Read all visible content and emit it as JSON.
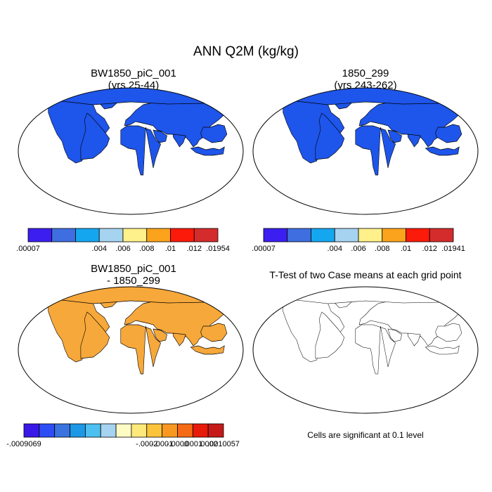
{
  "title": "ANN Q2M (kg/kg)",
  "panels": [
    {
      "id": "tl",
      "title_line1": "BW1850_piC_001",
      "title_line2": "(yrs 25-44)",
      "colorbar": {
        "colors": [
          "#3d1ef0",
          "#3f6ee0",
          "#15a6f0",
          "#a6d3ef",
          "#fef08a",
          "#fba31c",
          "#fc1a0a",
          "#d42c2c"
        ],
        "labels": [
          ".00007",
          ".004",
          ".006",
          ".008",
          ".01",
          ".012",
          ".01954"
        ]
      }
    },
    {
      "id": "tr",
      "title_line1": "1850_299",
      "title_line2": "(yrs 243-262)",
      "colorbar": {
        "colors": [
          "#3d1ef0",
          "#3f6ee0",
          "#15a6f0",
          "#a6d3ef",
          "#fef08a",
          "#fba31c",
          "#fc1a0a",
          "#d42c2c"
        ],
        "labels": [
          ".00007",
          ".004",
          ".006",
          ".008",
          ".01",
          ".012",
          ".01941"
        ]
      }
    },
    {
      "id": "bl",
      "title_line1": "BW1850_piC_001",
      "title_line2": "- 1850_299",
      "colorbar": {
        "colors": [
          "#3a18e8",
          "#2d4ef5",
          "#3a73e0",
          "#1c98e6",
          "#4cc0f0",
          "#a6d3ef",
          "#fffbc4",
          "#fde87a",
          "#fcc43a",
          "#f99820",
          "#f56a12",
          "#e81a0a",
          "#c51a18"
        ],
        "labels": [
          "-.0009069",
          "-.0002",
          "-.0001",
          "-.0000",
          ".0001",
          ".0002",
          ".0010057"
        ]
      }
    },
    {
      "id": "br",
      "title": "T-Test of two Case means at each grid point"
    }
  ],
  "significance_note": "Cells are significant at 0.1 level",
  "colors": {
    "ocean": "#ffffff",
    "land_outline": "#000000",
    "significant": "#f00000"
  }
}
